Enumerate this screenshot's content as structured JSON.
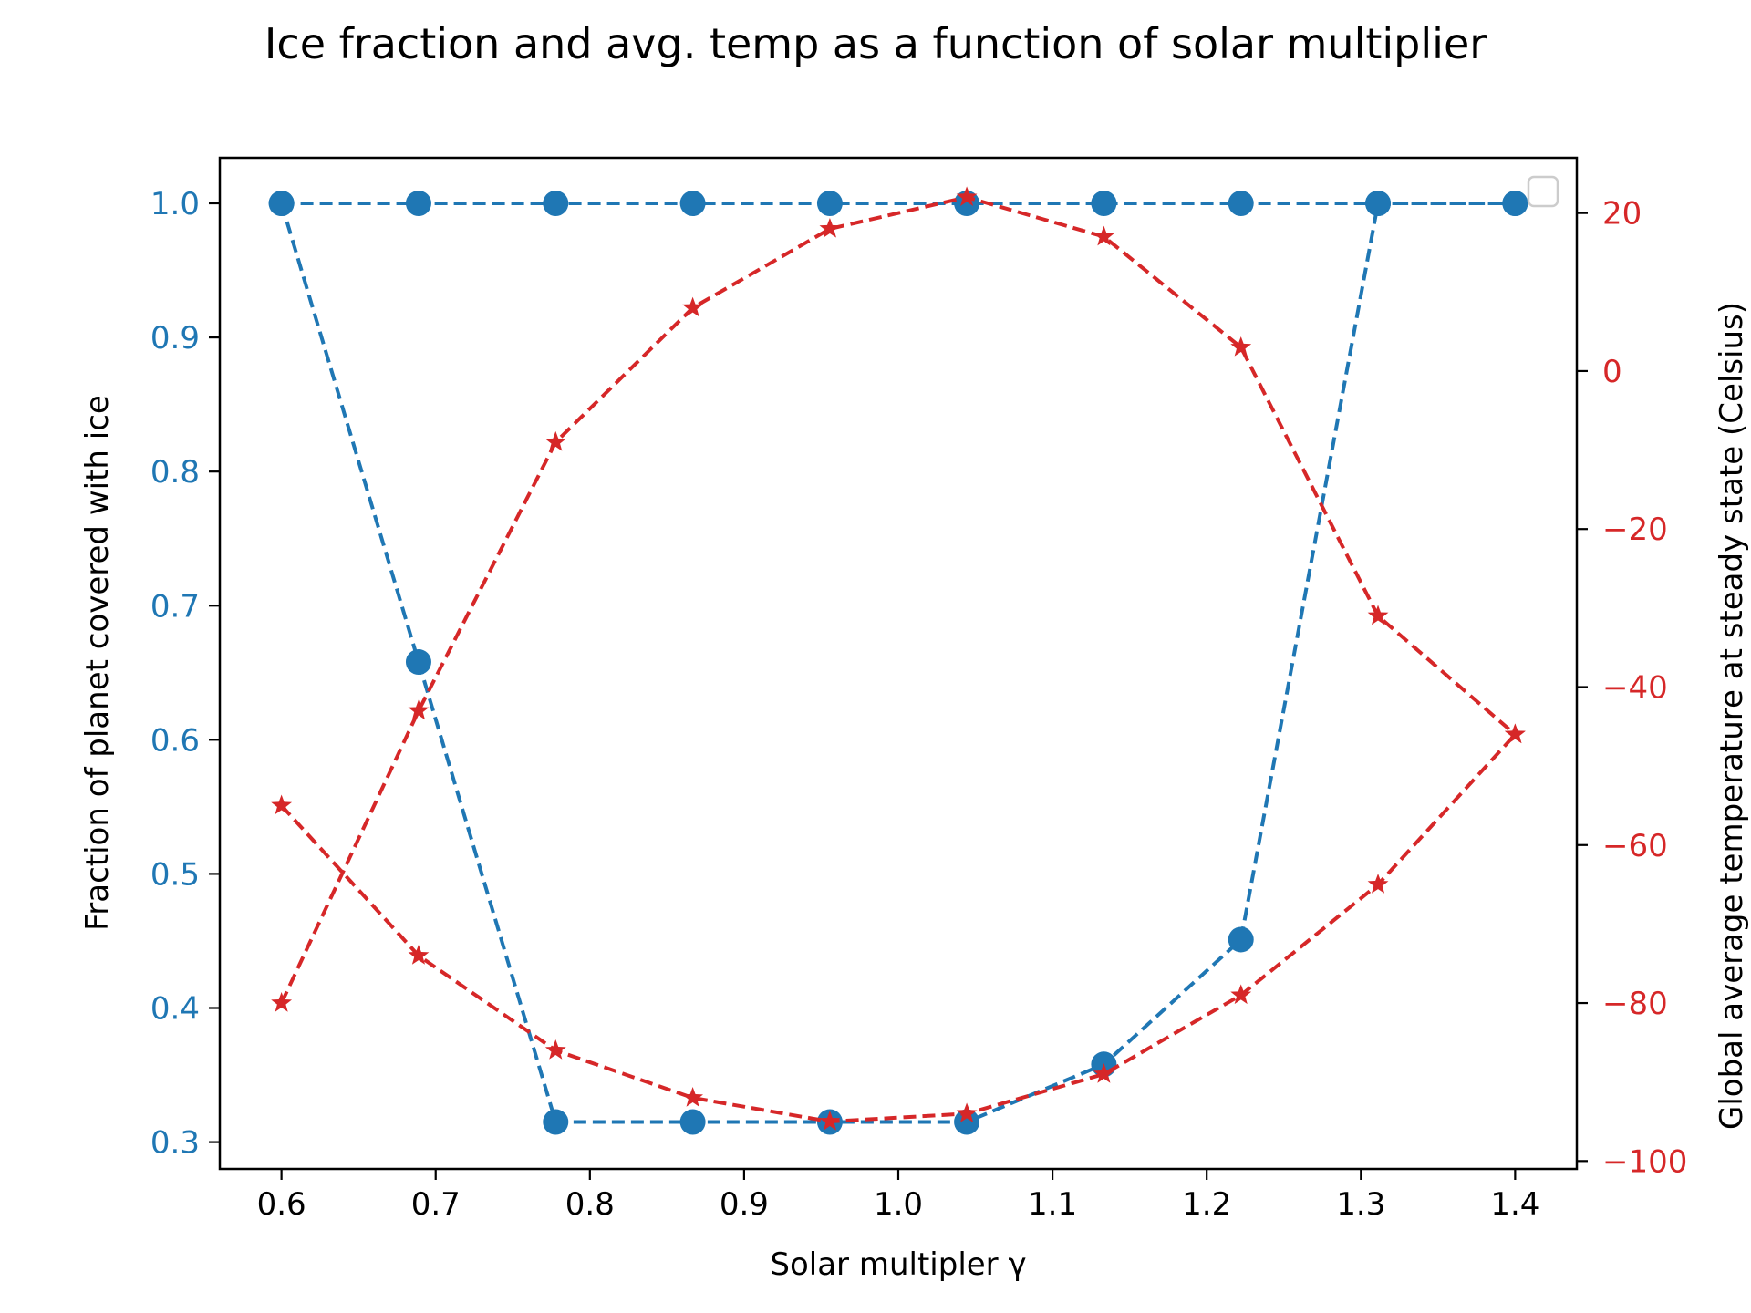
{
  "chart_data": {
    "type": "line",
    "title": "Ice fraction and avg. temp as a function of solar multiplier",
    "xlabel": "Solar multipler γ",
    "ylabel_left": "Fraction of planet covered with ice",
    "ylabel_right": "Global average temperature at steady state (Celsius)",
    "x": [
      0.6,
      0.6889,
      0.7778,
      0.8667,
      0.9556,
      1.0444,
      1.1333,
      1.2222,
      1.3111,
      1.4
    ],
    "xlim": [
      0.56,
      1.44
    ],
    "ylim_left": [
      0.28,
      1.034
    ],
    "ylim_right": [
      -101,
      27
    ],
    "xticks": [
      "0.6",
      "0.7",
      "0.8",
      "0.9",
      "1.0",
      "1.1",
      "1.2",
      "1.3",
      "1.4"
    ],
    "xtick_values": [
      0.6,
      0.7,
      0.8,
      0.9,
      1.0,
      1.1,
      1.2,
      1.3,
      1.4
    ],
    "yticks_left": [
      "0.3",
      "0.4",
      "0.5",
      "0.6",
      "0.7",
      "0.8",
      "0.9",
      "1.0"
    ],
    "ytick_values_left": [
      0.3,
      0.4,
      0.5,
      0.6,
      0.7,
      0.8,
      0.9,
      1.0
    ],
    "yticks_right": [
      "−100",
      "−80",
      "−60",
      "−40",
      "−20",
      "0",
      "20"
    ],
    "ytick_values_right": [
      -100,
      -80,
      -60,
      -40,
      -20,
      0,
      20
    ],
    "legend": "top-right",
    "grid": false,
    "left_color": "#1f77b4",
    "right_color": "#d62728",
    "series": [
      {
        "axis": "left",
        "marker": "circle",
        "linestyle": "dashed",
        "color": "#1f77b4",
        "values": [
          1.0,
          0.658,
          0.315,
          0.315,
          0.315,
          0.315,
          0.358,
          0.451,
          1.0,
          1.0
        ]
      },
      {
        "axis": "left",
        "marker": "circle",
        "linestyle": "dashed",
        "color": "#1f77b4",
        "values": [
          1.0,
          1.0,
          1.0,
          1.0,
          1.0,
          1.0,
          1.0,
          1.0,
          1.0,
          1.0
        ]
      },
      {
        "axis": "right",
        "marker": "star",
        "linestyle": "dashed",
        "color": "#d62728",
        "values": [
          -80,
          -43,
          -9,
          8,
          18,
          22,
          17,
          3,
          -31,
          -46
        ]
      },
      {
        "axis": "right",
        "marker": "star",
        "linestyle": "dashed",
        "color": "#d62728",
        "values": [
          -55,
          -74,
          -86,
          -92,
          -95,
          -94,
          -89,
          -79,
          -65,
          -46
        ]
      }
    ]
  }
}
